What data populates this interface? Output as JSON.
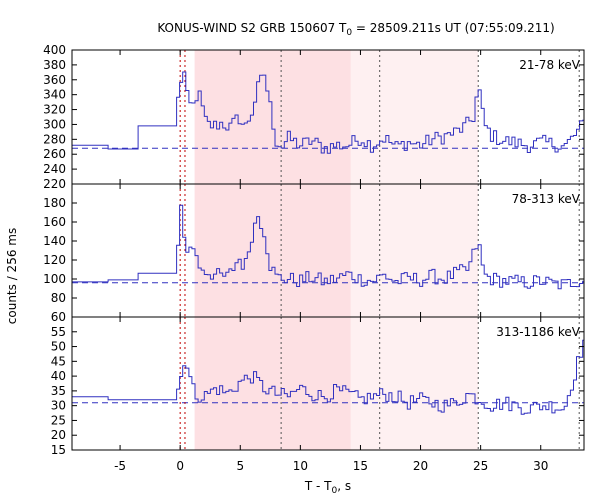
{
  "chart_data": {
    "type": "line",
    "title_main": "KONUS-WIND S2 GRB 150607 T",
    "title_sub": "0",
    "title_rest": " = 28509.211s UT (07:55:09.211)",
    "xlabel_main": "T - T",
    "xlabel_sub": "0",
    "xlabel_rest": ", s",
    "ylabel": "counts / 256 ms",
    "xlim": [
      -9,
      33.6
    ],
    "xticks": [
      -5,
      0,
      5,
      10,
      15,
      20,
      25,
      30
    ],
    "shaded_regions": [
      {
        "x0": 1.2,
        "x1": 14.2,
        "color": "#fde0e3"
      },
      {
        "x0": 14.2,
        "x1": 24.8,
        "color": "#fef0f1"
      }
    ],
    "vertical_lines": [
      {
        "x": 0.0,
        "color": "#c00000"
      },
      {
        "x": 0.4,
        "color": "#c00000"
      },
      {
        "x": 8.4,
        "color": "#555555"
      },
      {
        "x": 16.6,
        "color": "#555555"
      },
      {
        "x": 24.8,
        "color": "#555555"
      },
      {
        "x": 33.2,
        "color": "#555555"
      }
    ],
    "panels": [
      {
        "energy": "21-78 keV",
        "ylim": [
          220,
          400
        ],
        "yticks": [
          220,
          240,
          260,
          280,
          300,
          320,
          340,
          360,
          380,
          400
        ],
        "background": 268,
        "start": -9,
        "anchors": [
          [
            -9,
            272
          ],
          [
            -6,
            267
          ],
          [
            -3.5,
            298
          ],
          [
            -0.3,
            318
          ],
          [
            -0.1,
            342
          ],
          [
            0.0,
            362
          ],
          [
            0.2,
            358
          ],
          [
            0.4,
            372
          ],
          [
            0.6,
            335
          ],
          [
            1.0,
            320
          ],
          [
            1.5,
            345
          ],
          [
            2.2,
            300
          ],
          [
            2.8,
            298
          ],
          [
            3.5,
            302
          ],
          [
            4.2,
            296
          ],
          [
            4.9,
            310
          ],
          [
            5.4,
            295
          ],
          [
            6.0,
            318
          ],
          [
            6.5,
            350
          ],
          [
            7.0,
            368
          ],
          [
            7.5,
            325
          ],
          [
            8.0,
            278
          ],
          [
            8.5,
            270
          ],
          [
            9.0,
            282
          ],
          [
            10,
            272
          ],
          [
            11,
            278
          ],
          [
            12,
            268
          ],
          [
            13,
            272
          ],
          [
            14,
            272
          ],
          [
            15,
            282
          ],
          [
            16,
            272
          ],
          [
            17,
            282
          ],
          [
            18,
            270
          ],
          [
            19,
            276
          ],
          [
            20,
            272
          ],
          [
            21,
            280
          ],
          [
            22,
            284
          ],
          [
            23,
            290
          ],
          [
            23.8,
            298
          ],
          [
            24.5,
            312
          ],
          [
            24.8,
            356
          ],
          [
            25.3,
            300
          ],
          [
            26,
            284
          ],
          [
            27,
            278
          ],
          [
            28,
            275
          ],
          [
            29,
            272
          ],
          [
            30,
            276
          ],
          [
            31,
            274
          ],
          [
            32,
            270
          ],
          [
            33,
            288
          ],
          [
            33.6,
            302
          ]
        ]
      },
      {
        "energy": "78-313 keV",
        "ylim": [
          60,
          200
        ],
        "yticks": [
          60,
          80,
          100,
          120,
          140,
          160,
          180
        ],
        "background": 96,
        "start": -9,
        "anchors": [
          [
            -9,
            97
          ],
          [
            -6,
            99
          ],
          [
            -3.5,
            106
          ],
          [
            -0.3,
            108
          ],
          [
            0.0,
            186
          ],
          [
            0.3,
            152
          ],
          [
            0.6,
            125
          ],
          [
            1.0,
            140
          ],
          [
            1.5,
            115
          ],
          [
            2.2,
            108
          ],
          [
            3.0,
            104
          ],
          [
            4.0,
            102
          ],
          [
            4.9,
            122
          ],
          [
            5.4,
            112
          ],
          [
            6.0,
            148
          ],
          [
            6.5,
            168
          ],
          [
            7.0,
            150
          ],
          [
            7.5,
            115
          ],
          [
            8.0,
            102
          ],
          [
            9.0,
            100
          ],
          [
            10,
            98
          ],
          [
            11,
            102
          ],
          [
            12,
            97
          ],
          [
            13,
            100
          ],
          [
            14,
            105
          ],
          [
            15,
            100
          ],
          [
            16,
            98
          ],
          [
            17,
            104
          ],
          [
            18,
            97
          ],
          [
            19,
            101
          ],
          [
            20,
            99
          ],
          [
            21,
            103
          ],
          [
            22,
            100
          ],
          [
            23,
            106
          ],
          [
            24,
            110
          ],
          [
            24.8,
            140
          ],
          [
            25.3,
            104
          ],
          [
            26,
            100
          ],
          [
            27,
            98
          ],
          [
            28,
            97
          ],
          [
            29,
            96
          ],
          [
            30,
            98
          ],
          [
            31,
            95
          ],
          [
            32,
            94
          ],
          [
            33,
            98
          ],
          [
            33.6,
            100
          ]
        ]
      },
      {
        "energy": "313-1186 keV",
        "ylim": [
          15,
          60
        ],
        "yticks": [
          15,
          20,
          25,
          30,
          35,
          40,
          45,
          50,
          55
        ],
        "background": 31,
        "start": -9,
        "anchors": [
          [
            -9,
            33
          ],
          [
            -6,
            32
          ],
          [
            -3.5,
            32
          ],
          [
            -0.3,
            34
          ],
          [
            0.0,
            38
          ],
          [
            0.4,
            47
          ],
          [
            0.8,
            40
          ],
          [
            1.2,
            34
          ],
          [
            2.0,
            33
          ],
          [
            3.0,
            36
          ],
          [
            4.0,
            34
          ],
          [
            5.0,
            38
          ],
          [
            6.0,
            40
          ],
          [
            7.0,
            36
          ],
          [
            8.0,
            34
          ],
          [
            9.0,
            33
          ],
          [
            10,
            36
          ],
          [
            11,
            34
          ],
          [
            12,
            33
          ],
          [
            13,
            35
          ],
          [
            14,
            34
          ],
          [
            15,
            32
          ],
          [
            16,
            33
          ],
          [
            17,
            34
          ],
          [
            18,
            33
          ],
          [
            19,
            31
          ],
          [
            20,
            32
          ],
          [
            21,
            31
          ],
          [
            22,
            30
          ],
          [
            23,
            31
          ],
          [
            24,
            34
          ],
          [
            25,
            32
          ],
          [
            26,
            30
          ],
          [
            27,
            31
          ],
          [
            28,
            30
          ],
          [
            29,
            29
          ],
          [
            30,
            30
          ],
          [
            31,
            30
          ],
          [
            32,
            29
          ],
          [
            33,
            43
          ],
          [
            33.6,
            52
          ]
        ]
      }
    ]
  }
}
